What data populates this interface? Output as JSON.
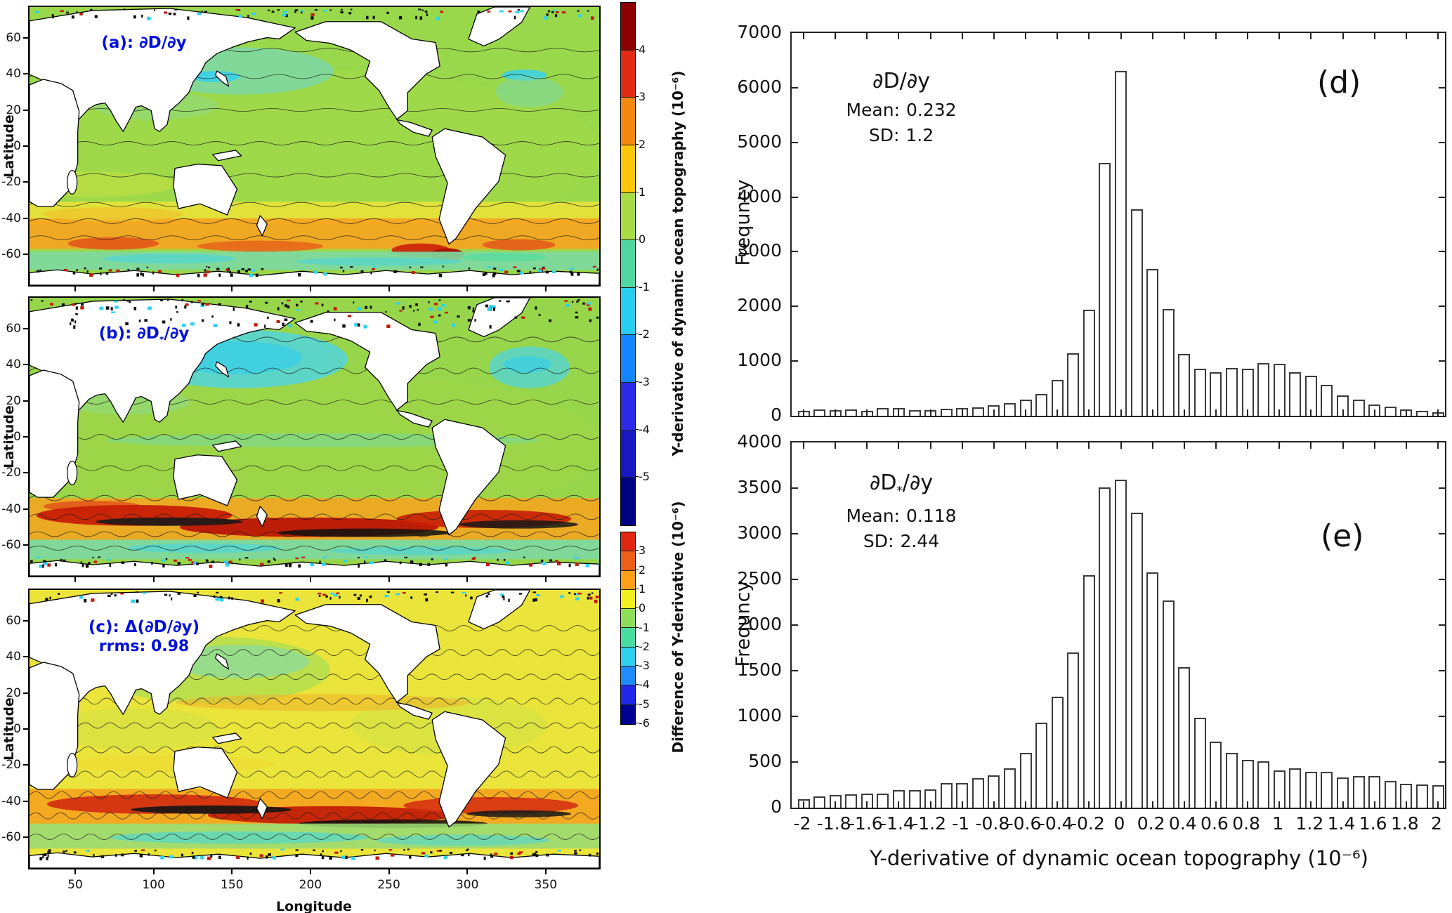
{
  "chart_data": [
    {
      "type": "heatmap",
      "panel": "a",
      "label": "(a): ∂D/∂y",
      "xlabel": "Longitude",
      "ylabel": "Latitude",
      "xlim": [
        20,
        385
      ],
      "ylim": [
        -78,
        78
      ],
      "xticks": [
        50,
        100,
        150,
        200,
        250,
        300,
        350
      ],
      "yticks": [
        60,
        40,
        20,
        0,
        -20,
        -40,
        -60
      ],
      "colorbar": {
        "title": "Y-derivative of dynamic ocean topography (10⁻⁶)",
        "ticks": [
          4,
          3,
          2,
          1,
          0,
          -1,
          -2,
          -3,
          -4,
          -5
        ],
        "colors": [
          "#8b0000",
          "#e22b14",
          "#f8870f",
          "#ffc60a",
          "#a8dc46",
          "#4fd8a2",
          "#29cdf0",
          "#1287ff",
          "#2a2ae8",
          "#1818c0",
          "#000082"
        ]
      },
      "summary": "Global map of the y-derivative of dynamic ocean topography from D; near-zero (green) over most oceans, orange-red band along the Southern Ocean (lat -40 to -60), dark/noisy values along Arctic and Antarctic margins."
    },
    {
      "type": "heatmap",
      "panel": "b",
      "label": "(b): ∂D*/∂y",
      "label_pre": "(b): ∂D",
      "label_star": "*",
      "label_post": "/∂y",
      "colorbar_shared_with_panel": "a",
      "summary": "Same quantity computed from D*; noisier, cyan patch in the North Pacific, strong dark-red/black band across the Southern Ocean."
    },
    {
      "type": "heatmap",
      "panel": "c",
      "label": "(c): Δ(∂D/∂y)",
      "annotation": "rrms: 0.98",
      "colorbar": {
        "title": "Difference of Y-derivative (10⁻⁶)",
        "ticks": [
          3,
          2,
          1,
          0,
          -1,
          -2,
          -3,
          -4,
          -5,
          -6
        ],
        "colors": [
          "#e02810",
          "#ed5e16",
          "#ffa018",
          "#f2ee20",
          "#8ede5a",
          "#49dca0",
          "#2fd2ee",
          "#1e8cff",
          "#1e28e6",
          "#000090"
        ]
      },
      "summary": "Difference of the two y-derivative fields; mostly yellow (small positive), speckled contours everywhere, orange-red/black band along lat -40 to -65."
    },
    {
      "type": "bar",
      "panel": "d",
      "letter": "(d)",
      "title": "∂D/∂y",
      "mean_label": "Mean:",
      "mean": "0.232",
      "sd_label": "SD:",
      "sd": "1.2",
      "ylabel": "Frequncy",
      "ylim": [
        0,
        7000
      ],
      "yticks": [
        0,
        1000,
        2000,
        3000,
        4000,
        5000,
        6000,
        7000
      ],
      "bin_width": 0.1,
      "bin_centers": [
        -2,
        -1.9,
        -1.8,
        -1.7,
        -1.6,
        -1.5,
        -1.4,
        -1.3,
        -1.2,
        -1.1,
        -1,
        -0.9,
        -0.8,
        -0.7,
        -0.6,
        -0.5,
        -0.4,
        -0.3,
        -0.2,
        -0.1,
        0,
        0.1,
        0.2,
        0.3,
        0.4,
        0.5,
        0.6,
        0.7,
        0.8,
        0.9,
        1,
        1.1,
        1.2,
        1.3,
        1.4,
        1.5,
        1.6,
        1.7,
        1.8,
        1.9,
        2
      ],
      "values": [
        90,
        115,
        105,
        115,
        95,
        140,
        140,
        105,
        105,
        130,
        140,
        155,
        195,
        235,
        300,
        400,
        660,
        1140,
        1935,
        4620,
        6310,
        3780,
        2690,
        1950,
        1125,
        860,
        800,
        875,
        855,
        960,
        945,
        800,
        735,
        565,
        370,
        300,
        210,
        170,
        110,
        90,
        65
      ]
    },
    {
      "type": "bar",
      "panel": "e",
      "letter": "(e)",
      "title": "∂D*/∂y",
      "title_pre": "∂D",
      "title_star": "*",
      "title_post": "/∂y",
      "mean_label": "Mean:",
      "mean": "0.118",
      "sd_label": "SD:",
      "sd": "2.44",
      "ylabel": "Frequncy",
      "xlabel": "Y-derivative of dynamic ocean topography (10⁻⁶)",
      "xtick_labels": [
        "-2",
        "-1.8",
        "-1.6",
        "-1.4",
        "-1.2",
        "-1",
        "-0.8",
        "-0.6",
        "-0.4",
        "-0.2",
        "0",
        "0.2",
        "0.4",
        "0.6",
        "0.8",
        "1",
        "1.2",
        "1.4",
        "1.6",
        "1.8",
        "2"
      ],
      "xlim": [
        -2.08,
        2.05
      ],
      "ylim": [
        0,
        4000
      ],
      "yticks": [
        0,
        500,
        1000,
        1500,
        2000,
        2500,
        3000,
        3500,
        4000
      ],
      "bin_width": 0.1,
      "bin_centers": [
        -2,
        -1.9,
        -1.8,
        -1.7,
        -1.6,
        -1.5,
        -1.4,
        -1.3,
        -1.2,
        -1.1,
        -1,
        -0.9,
        -0.8,
        -0.7,
        -0.6,
        -0.5,
        -0.4,
        -0.3,
        -0.2,
        -0.1,
        0,
        0.1,
        0.2,
        0.3,
        0.4,
        0.5,
        0.6,
        0.7,
        0.8,
        0.9,
        1,
        1.1,
        1.2,
        1.3,
        1.4,
        1.5,
        1.6,
        1.7,
        1.8,
        1.9,
        2
      ],
      "values": [
        95,
        125,
        140,
        146,
        152,
        155,
        190,
        193,
        200,
        266,
        270,
        323,
        356,
        434,
        600,
        930,
        1215,
        1700,
        2545,
        3510,
        3590,
        3230,
        2580,
        2270,
        1540,
        985,
        720,
        600,
        520,
        510,
        410,
        430,
        395,
        390,
        330,
        350,
        350,
        290,
        265,
        255,
        250
      ]
    }
  ]
}
